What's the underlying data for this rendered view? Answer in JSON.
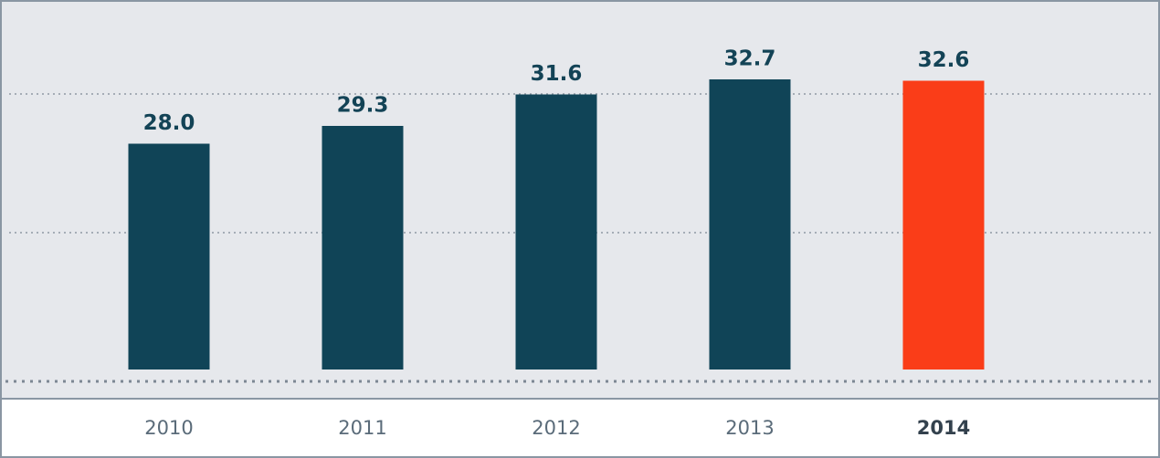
{
  "chart_data": {
    "type": "bar",
    "categories": [
      "2010",
      "2011",
      "2012",
      "2013",
      "2014"
    ],
    "values": [
      28.0,
      29.3,
      31.6,
      32.7,
      32.6
    ],
    "value_labels": [
      "28.0",
      "29.3",
      "31.6",
      "32.7",
      "32.6"
    ],
    "colors": [
      "#104457",
      "#104457",
      "#104457",
      "#104457",
      "#fa3d18"
    ],
    "ylim": [
      11.5,
      38.5
    ]
  }
}
